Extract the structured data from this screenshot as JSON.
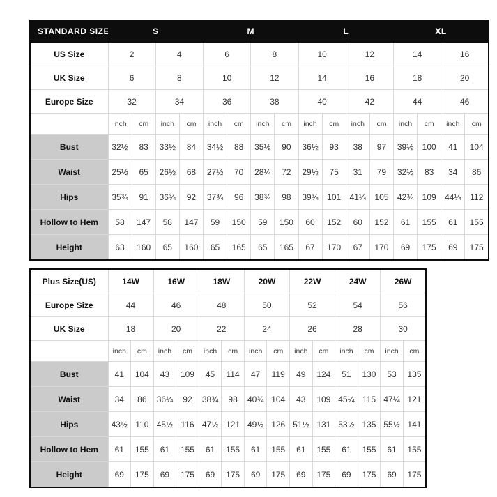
{
  "colors": {
    "header_bg": "#0d0d0d",
    "header_text": "#ffffff",
    "label_cell_bg": "#cbcbcb",
    "grid_line": "#d9d9d9",
    "outer_border": "#0d0d0d"
  },
  "chart_data": [
    {
      "type": "table",
      "name": "standard-size-chart",
      "title": "STANDARD SIZE",
      "size_groups": [
        "S",
        "M",
        "L",
        "XL"
      ],
      "unit_labels": [
        "inch",
        "cm"
      ],
      "size_rows": [
        {
          "label": "US Size",
          "values": [
            "2",
            "4",
            "6",
            "8",
            "10",
            "12",
            "14",
            "16"
          ]
        },
        {
          "label": "UK Size",
          "values": [
            "6",
            "8",
            "10",
            "12",
            "14",
            "16",
            "18",
            "20"
          ]
        },
        {
          "label": "Europe Size",
          "values": [
            "32",
            "34",
            "36",
            "38",
            "40",
            "42",
            "44",
            "46"
          ]
        }
      ],
      "measure_rows": [
        {
          "label": "Bust",
          "values": [
            "32½",
            "83",
            "33½",
            "84",
            "34½",
            "88",
            "35½",
            "90",
            "36½",
            "93",
            "38",
            "97",
            "39½",
            "100",
            "41",
            "104"
          ]
        },
        {
          "label": "Waist",
          "values": [
            "25½",
            "65",
            "26½",
            "68",
            "27½",
            "70",
            "28¼",
            "72",
            "29½",
            "75",
            "31",
            "79",
            "32½",
            "83",
            "34",
            "86"
          ]
        },
        {
          "label": "Hips",
          "values": [
            "35¾",
            "91",
            "36¾",
            "92",
            "37¾",
            "96",
            "38¾",
            "98",
            "39¾",
            "101",
            "41¼",
            "105",
            "42¾",
            "109",
            "44¼",
            "112"
          ]
        },
        {
          "label": "Hollow to Hem",
          "values": [
            "58",
            "147",
            "58",
            "147",
            "59",
            "150",
            "59",
            "150",
            "60",
            "152",
            "60",
            "152",
            "61",
            "155",
            "61",
            "155"
          ]
        },
        {
          "label": "Height",
          "values": [
            "63",
            "160",
            "65",
            "160",
            "65",
            "165",
            "65",
            "165",
            "67",
            "170",
            "67",
            "170",
            "69",
            "175",
            "69",
            "175"
          ]
        }
      ]
    },
    {
      "type": "table",
      "name": "plus-size-chart",
      "title": "",
      "size_groups": [],
      "unit_labels": [
        "inch",
        "cm"
      ],
      "size_rows": [
        {
          "label": "Plus Size(US)",
          "values": [
            "14W",
            "16W",
            "18W",
            "20W",
            "22W",
            "24W",
            "26W"
          ],
          "bold_values": true
        },
        {
          "label": "Europe Size",
          "values": [
            "44",
            "46",
            "48",
            "50",
            "52",
            "54",
            "56"
          ]
        },
        {
          "label": "UK Size",
          "values": [
            "18",
            "20",
            "22",
            "24",
            "26",
            "28",
            "30"
          ]
        }
      ],
      "measure_rows": [
        {
          "label": "Bust",
          "values": [
            "41",
            "104",
            "43",
            "109",
            "45",
            "114",
            "47",
            "119",
            "49",
            "124",
            "51",
            "130",
            "53",
            "135"
          ]
        },
        {
          "label": "Waist",
          "values": [
            "34",
            "86",
            "36¼",
            "92",
            "38¾",
            "98",
            "40¾",
            "104",
            "43",
            "109",
            "45¼",
            "115",
            "47¼",
            "121"
          ]
        },
        {
          "label": "Hips",
          "values": [
            "43½",
            "110",
            "45½",
            "116",
            "47½",
            "121",
            "49½",
            "126",
            "51½",
            "131",
            "53½",
            "135",
            "55½",
            "141"
          ]
        },
        {
          "label": "Hollow to Hem",
          "values": [
            "61",
            "155",
            "61",
            "155",
            "61",
            "155",
            "61",
            "155",
            "61",
            "155",
            "61",
            "155",
            "61",
            "155"
          ]
        },
        {
          "label": "Height",
          "values": [
            "69",
            "175",
            "69",
            "175",
            "69",
            "175",
            "69",
            "175",
            "69",
            "175",
            "69",
            "175",
            "69",
            "175"
          ]
        }
      ]
    }
  ]
}
